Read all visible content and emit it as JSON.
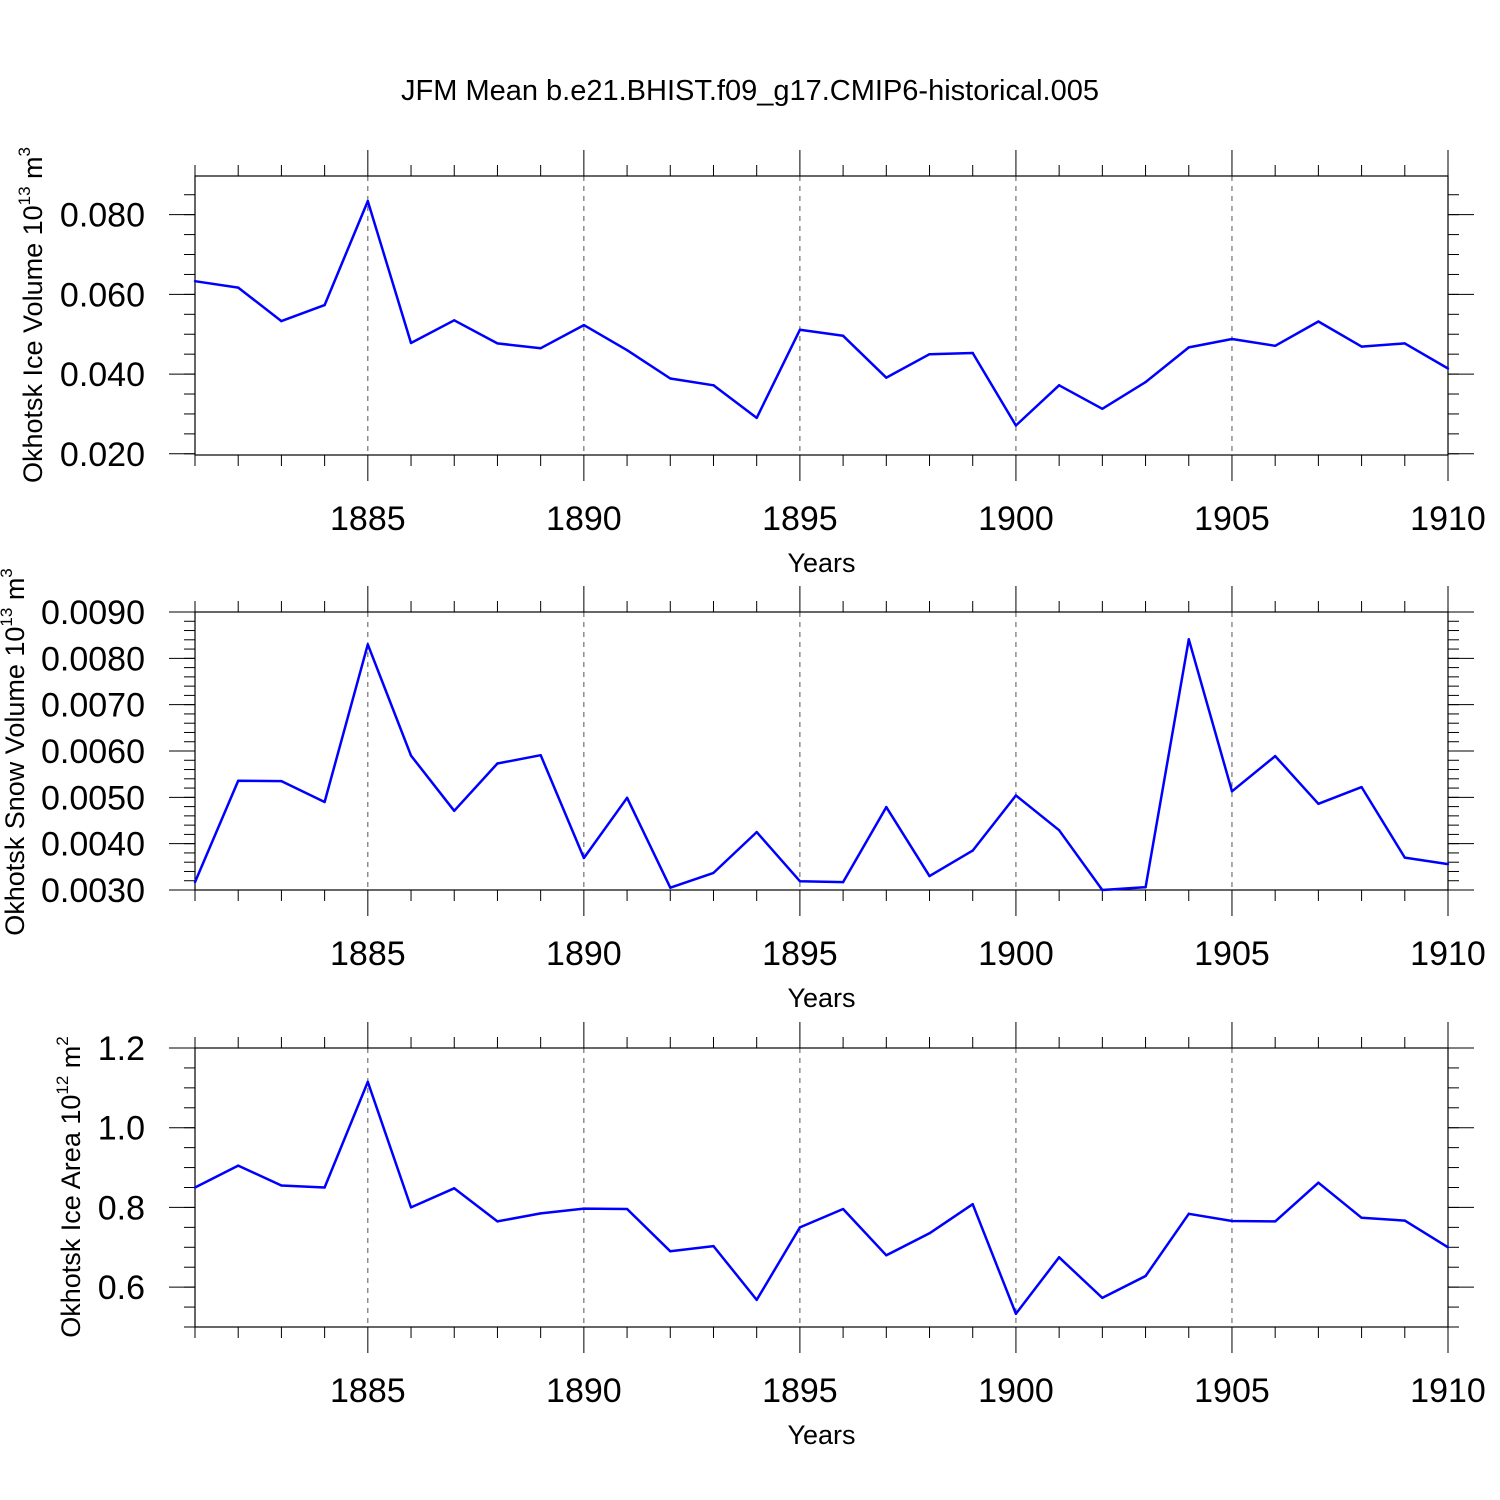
{
  "title": "JFM Mean b.e21.BHIST.f09_g17.CMIP6-historical.005",
  "colors": {
    "line": "#0000ff",
    "axis": "#000000",
    "grid": "#555555"
  },
  "chart_data": [
    {
      "type": "line",
      "xlabel": "Years",
      "ylabel": {
        "base": "Okhotsk Ice Volume 10",
        "exp": "13",
        "unit": " m",
        "unit_exp": "3"
      },
      "xlim": [
        1881,
        1910
      ],
      "ylim": [
        0.0197,
        0.0897
      ],
      "x_ticks": [
        1885,
        1890,
        1895,
        1900,
        1905,
        1910
      ],
      "y_ticks": [
        {
          "v": 0.02,
          "label": "0.020"
        },
        {
          "v": 0.04,
          "label": "0.040"
        },
        {
          "v": 0.06,
          "label": "0.060"
        },
        {
          "v": 0.08,
          "label": "0.080"
        }
      ],
      "y_minor_step": 0.005,
      "series": [
        {
          "name": "Ice Volume",
          "x": [
            1881,
            1882,
            1883,
            1884,
            1885,
            1886,
            1887,
            1888,
            1889,
            1890,
            1891,
            1892,
            1893,
            1894,
            1895,
            1896,
            1897,
            1898,
            1899,
            1900,
            1901,
            1902,
            1903,
            1904,
            1905,
            1906,
            1907,
            1908,
            1909,
            1910
          ],
          "values": [
            0.0633,
            0.0617,
            0.0533,
            0.0573,
            0.0834,
            0.0478,
            0.0535,
            0.0477,
            0.0465,
            0.0523,
            0.046,
            0.0389,
            0.0372,
            0.029,
            0.0511,
            0.0496,
            0.0391,
            0.045,
            0.0453,
            0.0271,
            0.0372,
            0.0313,
            0.038,
            0.0467,
            0.0488,
            0.0471,
            0.0532,
            0.0469,
            0.0477,
            0.0414
          ]
        }
      ]
    },
    {
      "type": "line",
      "xlabel": "Years",
      "ylabel": {
        "base": "Okhotsk Snow Volume 10",
        "exp": "13",
        "unit": " m",
        "unit_exp": "3"
      },
      "xlim": [
        1881,
        1910
      ],
      "ylim": [
        0.003,
        0.009
      ],
      "x_ticks": [
        1885,
        1890,
        1895,
        1900,
        1905,
        1910
      ],
      "y_ticks": [
        {
          "v": 0.003,
          "label": "0.0030"
        },
        {
          "v": 0.004,
          "label": "0.0040"
        },
        {
          "v": 0.005,
          "label": "0.0050"
        },
        {
          "v": 0.006,
          "label": "0.0060"
        },
        {
          "v": 0.007,
          "label": "0.0070"
        },
        {
          "v": 0.008,
          "label": "0.0080"
        },
        {
          "v": 0.009,
          "label": "0.0090"
        }
      ],
      "y_minor_step": 0.0002,
      "series": [
        {
          "name": "Snow Volume",
          "x": [
            1881,
            1882,
            1883,
            1884,
            1885,
            1886,
            1887,
            1888,
            1889,
            1890,
            1891,
            1892,
            1893,
            1894,
            1895,
            1896,
            1897,
            1898,
            1899,
            1900,
            1901,
            1902,
            1903,
            1904,
            1905,
            1906,
            1907,
            1908,
            1909,
            1910
          ],
          "values": [
            0.00317,
            0.00536,
            0.00535,
            0.0049,
            0.0083,
            0.0059,
            0.00471,
            0.00573,
            0.00591,
            0.00369,
            0.00499,
            0.00305,
            0.00337,
            0.00425,
            0.00319,
            0.00317,
            0.00479,
            0.0033,
            0.00385,
            0.00504,
            0.00429,
            0.003,
            0.00306,
            0.00841,
            0.00513,
            0.00589,
            0.00486,
            0.00522,
            0.0037,
            0.00356
          ]
        }
      ]
    },
    {
      "type": "line",
      "xlabel": "Years",
      "ylabel": {
        "base": "Okhotsk Ice Area 10",
        "exp": "12",
        "unit": " m",
        "unit_exp": "2"
      },
      "xlim": [
        1881,
        1910
      ],
      "ylim": [
        0.5,
        1.2
      ],
      "x_ticks": [
        1885,
        1890,
        1895,
        1900,
        1905,
        1910
      ],
      "y_ticks": [
        {
          "v": 0.6,
          "label": "0.6"
        },
        {
          "v": 0.8,
          "label": "0.8"
        },
        {
          "v": 1.0,
          "label": "1.0"
        },
        {
          "v": 1.2,
          "label": "1.2"
        }
      ],
      "y_minor_step": 0.05,
      "series": [
        {
          "name": "Ice Area",
          "x": [
            1881,
            1882,
            1883,
            1884,
            1885,
            1886,
            1887,
            1888,
            1889,
            1890,
            1891,
            1892,
            1893,
            1894,
            1895,
            1896,
            1897,
            1898,
            1899,
            1900,
            1901,
            1902,
            1903,
            1904,
            1905,
            1906,
            1907,
            1908,
            1909,
            1910
          ],
          "values": [
            0.85,
            0.905,
            0.855,
            0.85,
            1.115,
            0.8,
            0.848,
            0.765,
            0.785,
            0.797,
            0.796,
            0.69,
            0.703,
            0.568,
            0.75,
            0.796,
            0.68,
            0.735,
            0.808,
            0.533,
            0.675,
            0.573,
            0.628,
            0.784,
            0.766,
            0.765,
            0.862,
            0.774,
            0.767,
            0.7
          ]
        }
      ]
    }
  ]
}
